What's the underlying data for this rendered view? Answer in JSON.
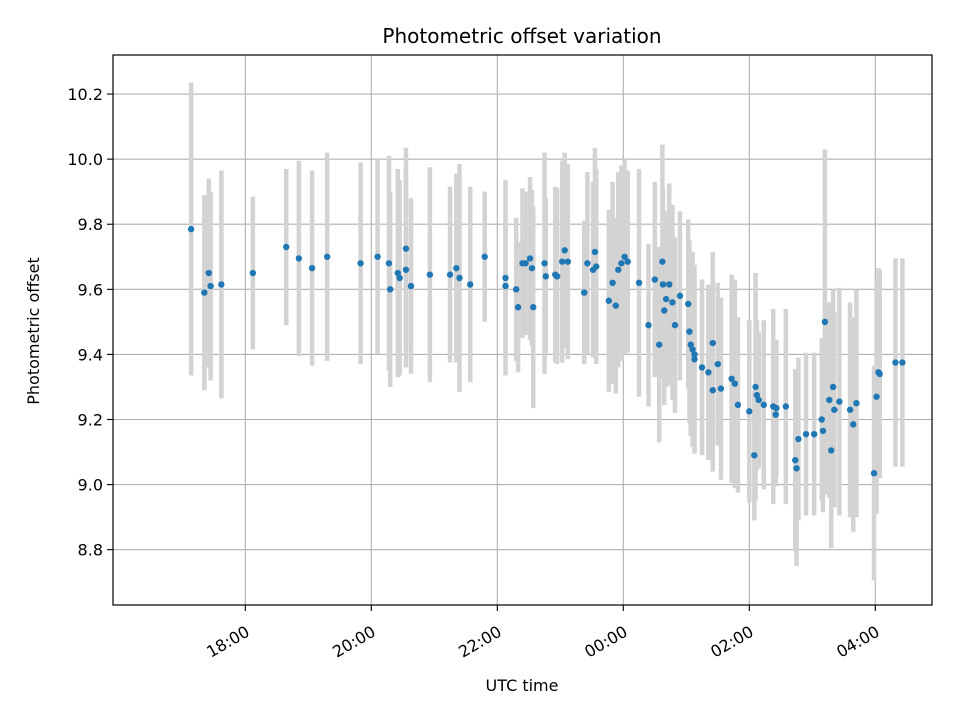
{
  "chart_data": {
    "type": "scatter",
    "title": "Photometric offset variation",
    "xlabel": "UTC time",
    "ylabel": "Photometric offset",
    "x_axis": {
      "kind": "time",
      "range_hours": [
        15.9,
        28.9
      ],
      "ticks": [
        {
          "hour": 18,
          "label": "18:00"
        },
        {
          "hour": 20,
          "label": "20:00"
        },
        {
          "hour": 22,
          "label": "22:00"
        },
        {
          "hour": 24,
          "label": "00:00"
        },
        {
          "hour": 26,
          "label": "02:00"
        },
        {
          "hour": 28,
          "label": "04:00"
        }
      ]
    },
    "y_axis": {
      "range": [
        8.63,
        10.32
      ],
      "ticks": [
        {
          "value": 8.8,
          "label": "8.8"
        },
        {
          "value": 9.0,
          "label": "9.0"
        },
        {
          "value": 9.2,
          "label": "9.2"
        },
        {
          "value": 9.4,
          "label": "9.4"
        },
        {
          "value": 9.6,
          "label": "9.6"
        },
        {
          "value": 9.8,
          "label": "9.8"
        },
        {
          "value": 10.0,
          "label": "10.0"
        },
        {
          "value": 10.2,
          "label": "10.2"
        }
      ]
    },
    "grid": true,
    "colors": {
      "point": "#1f77b4",
      "errorbar": "#d3d3d3",
      "grid": "#b0b0b0"
    },
    "series": [
      {
        "x": [
          17.14,
          17.35,
          17.42,
          17.45,
          17.62,
          18.12,
          18.65,
          18.85,
          19.06,
          19.3,
          19.83,
          20.1,
          20.28,
          20.3,
          20.42,
          20.45,
          20.55,
          20.55,
          20.63,
          20.93,
          21.25,
          21.35,
          21.4,
          21.57,
          21.8,
          22.13,
          22.13,
          22.3,
          22.33,
          22.4,
          22.45,
          22.52,
          22.55,
          22.57,
          22.75,
          22.77,
          22.92,
          22.95,
          23.03,
          23.07,
          23.12,
          23.38,
          23.43,
          23.52,
          23.55,
          23.57,
          23.77,
          23.83,
          23.88,
          23.92,
          23.97,
          24.02,
          24.07,
          24.25,
          24.4,
          24.5,
          24.57,
          24.62,
          24.63,
          24.65,
          24.68,
          24.73,
          24.78,
          24.82,
          24.9,
          25.03,
          25.05,
          25.07,
          25.1,
          25.13,
          25.13,
          25.25,
          25.35,
          25.42,
          25.42,
          25.5,
          25.55,
          25.72,
          25.77,
          25.82,
          26.0,
          26.08,
          26.1,
          26.12,
          26.15,
          26.23,
          26.38,
          26.42,
          26.43,
          26.58,
          26.73,
          26.75,
          26.78,
          26.9,
          27.03,
          27.15,
          27.17,
          27.2,
          27.27,
          27.3,
          27.33,
          27.35,
          27.43,
          27.6,
          27.65,
          27.7,
          27.98,
          28.02,
          28.05,
          28.07,
          28.32,
          28.43
        ],
        "y": [
          9.785,
          9.59,
          9.65,
          9.61,
          9.615,
          9.65,
          9.73,
          9.695,
          9.665,
          9.7,
          9.68,
          9.7,
          9.68,
          9.6,
          9.65,
          9.635,
          9.725,
          9.66,
          9.61,
          9.645,
          9.645,
          9.665,
          9.635,
          9.615,
          9.7,
          9.635,
          9.61,
          9.6,
          9.545,
          9.68,
          9.68,
          9.695,
          9.665,
          9.545,
          9.68,
          9.64,
          9.645,
          9.64,
          9.685,
          9.72,
          9.685,
          9.59,
          9.68,
          9.66,
          9.715,
          9.67,
          9.565,
          9.62,
          9.55,
          9.66,
          9.68,
          9.7,
          9.685,
          9.62,
          9.49,
          9.63,
          9.43,
          9.685,
          9.615,
          9.535,
          9.57,
          9.615,
          9.56,
          9.49,
          9.58,
          9.555,
          9.47,
          9.43,
          9.415,
          9.4,
          9.385,
          9.36,
          9.345,
          9.435,
          9.29,
          9.37,
          9.295,
          9.325,
          9.31,
          9.245,
          9.225,
          9.09,
          9.3,
          9.275,
          9.26,
          9.245,
          9.24,
          9.215,
          9.235,
          9.24,
          9.075,
          9.05,
          9.14,
          9.155,
          9.155,
          9.2,
          9.165,
          9.5,
          9.26,
          9.105,
          9.3,
          9.23,
          9.255,
          9.23,
          9.185,
          9.25,
          9.035,
          9.27,
          9.345,
          9.34,
          9.375,
          9.375
        ],
        "err": [
          0.45,
          0.3,
          0.29,
          0.29,
          0.35,
          0.235,
          0.24,
          0.3,
          0.3,
          0.32,
          0.31,
          0.3,
          0.33,
          0.3,
          0.32,
          0.3,
          0.31,
          0.3,
          0.27,
          0.33,
          0.27,
          0.29,
          0.35,
          0.3,
          0.2,
          0.3,
          0.2,
          0.22,
          0.2,
          0.23,
          0.22,
          0.25,
          0.24,
          0.31,
          0.34,
          0.24,
          0.27,
          0.27,
          0.31,
          0.3,
          0.3,
          0.22,
          0.28,
          0.27,
          0.32,
          0.3,
          0.28,
          0.31,
          0.27,
          0.3,
          0.3,
          0.3,
          0.28,
          0.35,
          0.25,
          0.3,
          0.3,
          0.36,
          0.29,
          0.29,
          0.27,
          0.31,
          0.3,
          0.27,
          0.26,
          0.26,
          0.28,
          0.28,
          0.3,
          0.23,
          0.29,
          0.27,
          0.27,
          0.28,
          0.25,
          0.25,
          0.28,
          0.32,
          0.32,
          0.27,
          0.28,
          0.2,
          0.35,
          0.23,
          0.21,
          0.26,
          0.3,
          0.22,
          0.21,
          0.3,
          0.28,
          0.3,
          0.25,
          0.25,
          0.25,
          0.25,
          0.25,
          0.53,
          0.3,
          0.3,
          0.3,
          0.3,
          0.35,
          0.33,
          0.33,
          0.35,
          0.33,
          0.36,
          0.32,
          0.32,
          0.32,
          0.32
        ]
      }
    ]
  }
}
